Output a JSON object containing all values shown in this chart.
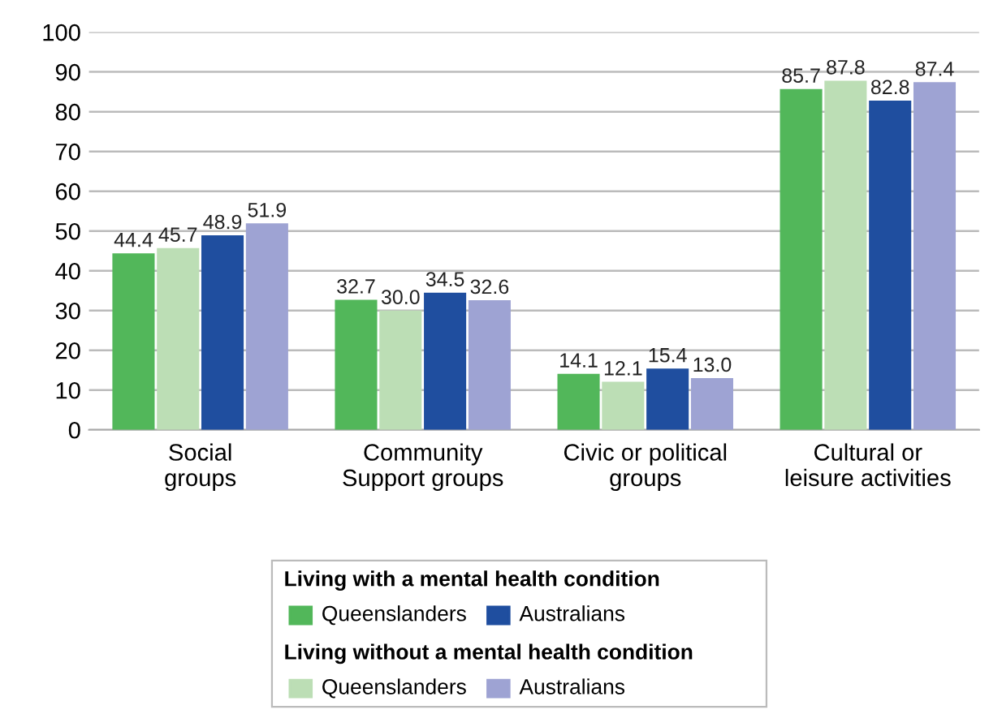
{
  "chart_data": {
    "type": "bar",
    "categories": [
      "Social\ngroups",
      "Community\nSupport groups",
      "Civic or political\ngroups",
      "Cultural or\nleisure activities"
    ],
    "series": [
      {
        "name": "Queenslanders",
        "color": "#52b75a",
        "values": [
          44.4,
          32.7,
          14.1,
          85.7
        ],
        "value_labels": [
          "44.4",
          "32.7",
          "14.1",
          "85.7"
        ]
      },
      {
        "name": "Queenslanders",
        "color": "#bcdeb5",
        "values": [
          45.7,
          30.0,
          12.1,
          87.8
        ],
        "value_labels": [
          "45.7",
          "30.0",
          "12.1",
          "87.8"
        ]
      },
      {
        "name": "Australians",
        "color": "#1f4e9f",
        "values": [
          48.9,
          34.5,
          15.4,
          82.8
        ],
        "value_labels": [
          "48.9",
          "34.5",
          "15.4",
          "82.8"
        ]
      },
      {
        "name": "Australians",
        "color": "#9ea3d3",
        "values": [
          51.9,
          32.6,
          13.0,
          87.4
        ],
        "value_labels": [
          "51.9",
          "32.6",
          "13.0",
          "87.4"
        ]
      }
    ],
    "legend_title": "Living with a mental health condition",
    "annotations": [
      "Living without a mental health condition"
    ],
    "ylim": [
      0,
      100
    ],
    "yticks": [
      0,
      10,
      20,
      30,
      40,
      50,
      60,
      70,
      80,
      90,
      100
    ],
    "grid": "y",
    "legend": "bottom"
  }
}
